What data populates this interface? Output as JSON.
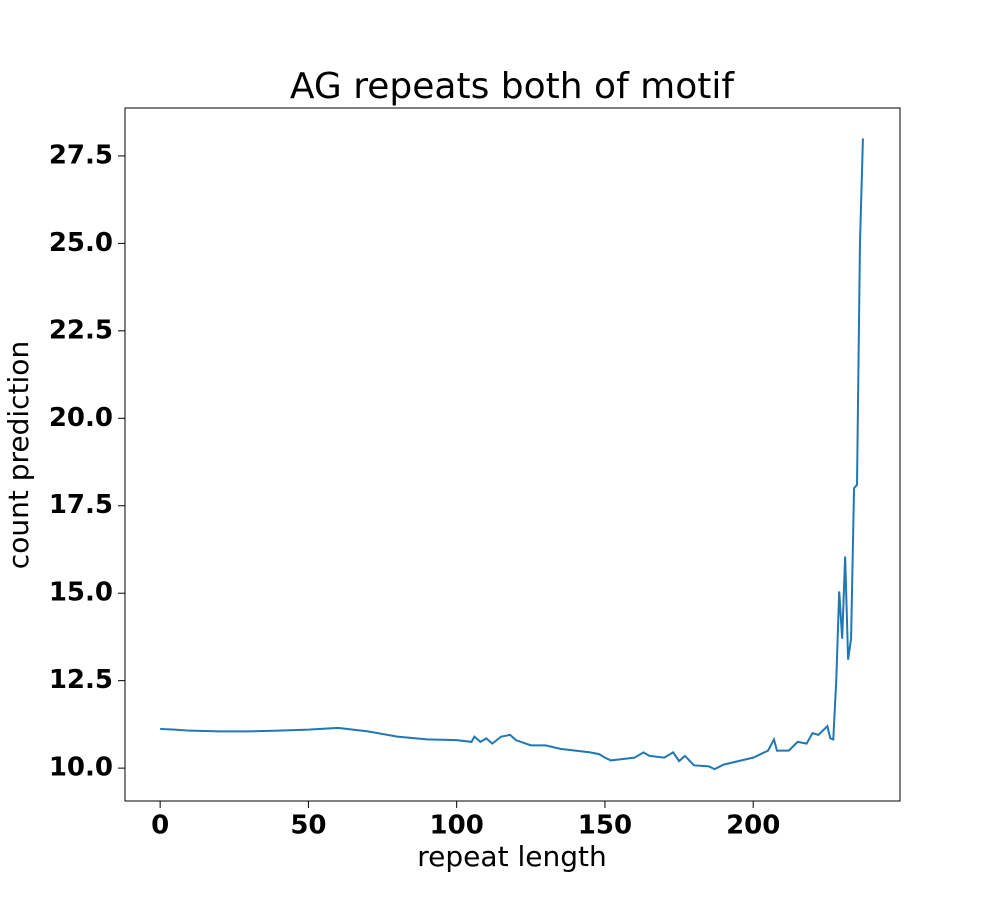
{
  "chart_data": {
    "type": "line",
    "title": "AG repeats both of motif",
    "xlabel": "repeat length",
    "ylabel": "count prediction",
    "x": [
      0,
      5,
      10,
      20,
      30,
      40,
      50,
      60,
      70,
      80,
      90,
      100,
      105,
      106,
      108,
      110,
      112,
      115,
      118,
      120,
      125,
      130,
      135,
      140,
      145,
      148,
      150,
      152,
      155,
      160,
      163,
      165,
      170,
      173,
      175,
      177,
      180,
      185,
      187,
      190,
      195,
      200,
      205,
      207,
      208,
      212,
      215,
      218,
      220,
      222,
      225,
      226,
      227,
      228,
      229,
      230,
      231,
      232,
      233,
      234,
      235,
      236,
      237
    ],
    "series": [
      {
        "name": "count prediction",
        "color": "#1f77b4",
        "values": [
          11.12,
          11.1,
          11.07,
          11.05,
          11.05,
          11.07,
          11.1,
          11.15,
          11.05,
          10.9,
          10.82,
          10.8,
          10.75,
          10.9,
          10.75,
          10.85,
          10.7,
          10.9,
          10.95,
          10.8,
          10.65,
          10.65,
          10.55,
          10.5,
          10.45,
          10.4,
          10.3,
          10.22,
          10.25,
          10.3,
          10.45,
          10.35,
          10.3,
          10.45,
          10.2,
          10.35,
          10.08,
          10.05,
          9.97,
          10.1,
          10.2,
          10.3,
          10.5,
          10.82,
          10.5,
          10.5,
          10.75,
          10.7,
          11.0,
          10.95,
          11.2,
          10.85,
          10.82,
          12.5,
          15.05,
          13.7,
          16.05,
          13.1,
          13.7,
          18.0,
          18.1,
          25.0,
          28.0
        ]
      }
    ],
    "xlim": [
      -11.85,
      249.5
    ],
    "xticks": [
      0,
      50,
      100,
      150,
      200
    ],
    "ylim": [
      9.06,
      28.87
    ],
    "yticks": [
      {
        "value": 10,
        "label": "10.0"
      },
      12.5,
      {
        "value": 15,
        "label": "15.0"
      },
      17.5,
      {
        "value": 20,
        "label": "20.0"
      },
      22.5,
      {
        "value": 25,
        "label": "25.0"
      },
      27.5
    ],
    "grid": false
  }
}
